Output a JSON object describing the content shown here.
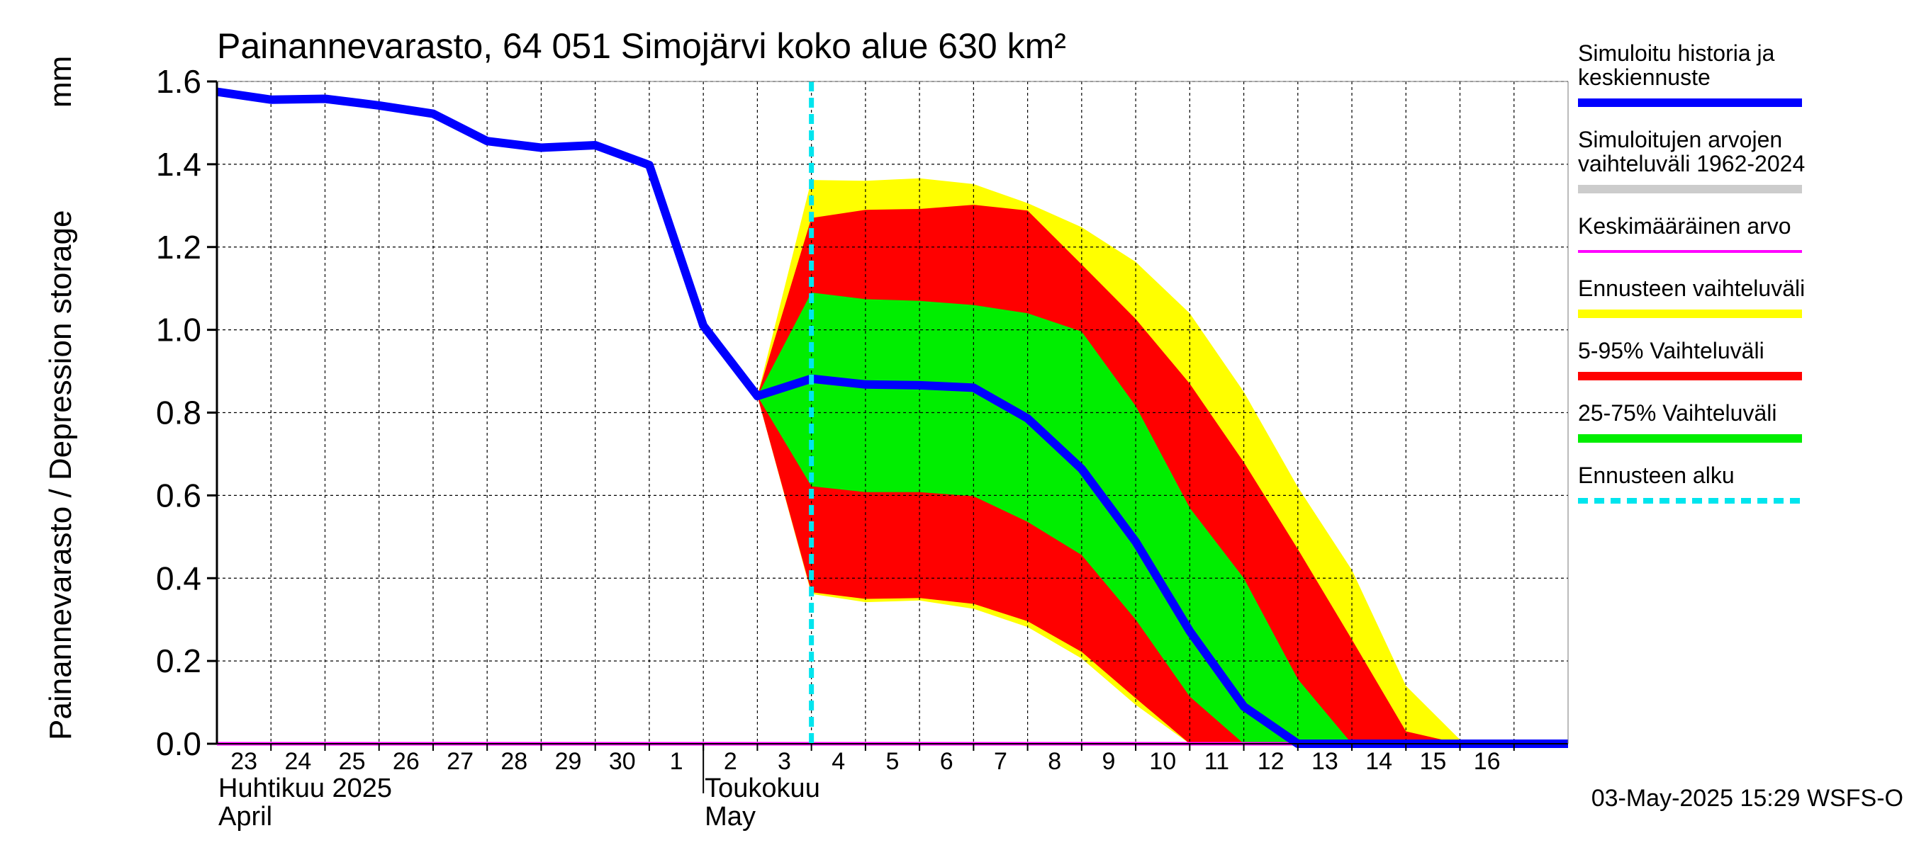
{
  "chart_data": {
    "type": "area",
    "title": "Painannevarasto, 64 051 Simojärvi koko alue 630 km²",
    "ylabel": "Painannevarasto / Depression storage",
    "yunit": "mm",
    "ylim": [
      0,
      1.6
    ],
    "yticks": [
      "0.0",
      "0.2",
      "0.4",
      "0.6",
      "0.8",
      "1.0",
      "1.2",
      "1.4",
      "1.6"
    ],
    "grid": true,
    "x_start_date": "2025-04-22",
    "x_end_date": "2025-05-17",
    "x_ticks": [
      {
        "date": "2025-04-23",
        "label": "23"
      },
      {
        "date": "2025-04-24",
        "label": "24"
      },
      {
        "date": "2025-04-25",
        "label": "25"
      },
      {
        "date": "2025-04-26",
        "label": "26"
      },
      {
        "date": "2025-04-27",
        "label": "27"
      },
      {
        "date": "2025-04-28",
        "label": "28"
      },
      {
        "date": "2025-04-29",
        "label": "29"
      },
      {
        "date": "2025-04-30",
        "label": "30"
      },
      {
        "date": "2025-05-01",
        "label": "1"
      },
      {
        "date": "2025-05-02",
        "label": "2"
      },
      {
        "date": "2025-05-03",
        "label": "3"
      },
      {
        "date": "2025-05-04",
        "label": "4"
      },
      {
        "date": "2025-05-05",
        "label": "5"
      },
      {
        "date": "2025-05-06",
        "label": "6"
      },
      {
        "date": "2025-05-07",
        "label": "7"
      },
      {
        "date": "2025-05-08",
        "label": "8"
      },
      {
        "date": "2025-05-09",
        "label": "9"
      },
      {
        "date": "2025-05-10",
        "label": "10"
      },
      {
        "date": "2025-05-11",
        "label": "11"
      },
      {
        "date": "2025-05-12",
        "label": "12"
      },
      {
        "date": "2025-05-13",
        "label": "13"
      },
      {
        "date": "2025-05-14",
        "label": "14"
      },
      {
        "date": "2025-05-15",
        "label": "15"
      },
      {
        "date": "2025-05-16",
        "label": "16"
      }
    ],
    "month_labels": [
      {
        "date": "2025-04-22",
        "fi": "Huhtikuu  2025",
        "en": "April"
      },
      {
        "date": "2025-05-01",
        "fi": "Toukokuu",
        "en": "May"
      }
    ],
    "month_divider_date": "2025-05-01",
    "forecast_start": "2025-05-03",
    "simulated": [
      {
        "x": "2025-04-22",
        "y": 1.575
      },
      {
        "x": "2025-04-23",
        "y": 1.556
      },
      {
        "x": "2025-04-24",
        "y": 1.558
      },
      {
        "x": "2025-04-25",
        "y": 1.542
      },
      {
        "x": "2025-04-26",
        "y": 1.522
      },
      {
        "x": "2025-04-27",
        "y": 1.456
      },
      {
        "x": "2025-04-28",
        "y": 1.44
      },
      {
        "x": "2025-04-29",
        "y": 1.446
      },
      {
        "x": "2025-04-30",
        "y": 1.398
      },
      {
        "x": "2025-05-01",
        "y": 1.01
      },
      {
        "x": "2025-05-02",
        "y": 0.84
      },
      {
        "x": "2025-05-03",
        "y": 0.882
      },
      {
        "x": "2025-05-04",
        "y": 0.868
      },
      {
        "x": "2025-05-05",
        "y": 0.866
      },
      {
        "x": "2025-05-06",
        "y": 0.86
      },
      {
        "x": "2025-05-07",
        "y": 0.786
      },
      {
        "x": "2025-05-08",
        "y": 0.664
      },
      {
        "x": "2025-05-09",
        "y": 0.488
      },
      {
        "x": "2025-05-10",
        "y": 0.272
      },
      {
        "x": "2025-05-11",
        "y": 0.09
      },
      {
        "x": "2025-05-12",
        "y": 0.0
      },
      {
        "x": "2025-05-13",
        "y": 0.0
      },
      {
        "x": "2025-05-14",
        "y": 0.0
      },
      {
        "x": "2025-05-15",
        "y": 0.0
      },
      {
        "x": "2025-05-16",
        "y": 0.0
      },
      {
        "x": "2025-05-17",
        "y": 0.0
      }
    ],
    "forecast_dates": [
      "2025-05-02",
      "2025-05-03",
      "2025-05-04",
      "2025-05-05",
      "2025-05-06",
      "2025-05-07",
      "2025-05-08",
      "2025-05-09",
      "2025-05-10",
      "2025-05-11",
      "2025-05-12",
      "2025-05-13",
      "2025-05-14",
      "2025-05-15",
      "2025-05-16",
      "2025-05-17"
    ],
    "bands": [
      {
        "name": "Ennusteen vaihteluväli",
        "color": "#ffff00",
        "low": [
          0.84,
          0.362,
          0.342,
          0.346,
          0.326,
          0.282,
          0.206,
          0.094,
          0.0,
          0.0,
          0.0,
          0.0,
          0.0,
          0.0,
          0.0,
          0.0
        ],
        "high": [
          0.84,
          1.362,
          1.36,
          1.366,
          1.352,
          1.306,
          1.248,
          1.164,
          1.04,
          0.85,
          0.62,
          0.42,
          0.14,
          0.01,
          0.0,
          0.0
        ]
      },
      {
        "name": "5-95% Vaihteluväli",
        "color": "#ff0000",
        "low": [
          0.84,
          0.366,
          0.35,
          0.352,
          0.338,
          0.296,
          0.222,
          0.11,
          0.0,
          0.0,
          0.0,
          0.0,
          0.0,
          0.0,
          0.0,
          0.0
        ],
        "high": [
          0.84,
          1.27,
          1.29,
          1.292,
          1.302,
          1.288,
          1.158,
          1.026,
          0.87,
          0.68,
          0.47,
          0.252,
          0.03,
          0.0,
          0.0,
          0.0
        ]
      },
      {
        "name": "25-75% Vaihteluväli",
        "color": "#00ee00",
        "low": [
          0.84,
          0.622,
          0.608,
          0.608,
          0.598,
          0.536,
          0.456,
          0.3,
          0.114,
          0.0,
          0.0,
          0.0,
          0.0,
          0.0,
          0.0,
          0.0
        ],
        "high": [
          0.84,
          1.09,
          1.074,
          1.07,
          1.06,
          1.04,
          0.996,
          0.816,
          0.57,
          0.4,
          0.156,
          0.0,
          0.0,
          0.0,
          0.0,
          0.0
        ]
      }
    ],
    "mean_value": 0.0,
    "legend_position": "right",
    "legend": [
      {
        "lines": [
          "Simuloitu historia ja",
          "keskiennuste"
        ],
        "color": "#0000ff",
        "style": "solid"
      },
      {
        "lines": [
          "Simuloitujen arvojen",
          "vaihteluväli 1962-2024"
        ],
        "color": "#cccccc",
        "style": "solid"
      },
      {
        "lines": [
          "Keskimääräinen arvo"
        ],
        "color": "#ff00ff",
        "style": "thin"
      },
      {
        "lines": [
          "Ennusteen vaihteluväli"
        ],
        "color": "#ffff00",
        "style": "solid"
      },
      {
        "lines": [
          "5-95% Vaihteluväli"
        ],
        "color": "#ff0000",
        "style": "solid"
      },
      {
        "lines": [
          "25-75% Vaihteluväli"
        ],
        "color": "#00ee00",
        "style": "solid"
      },
      {
        "lines": [
          "Ennusteen alku"
        ],
        "color": "#00e5ee",
        "style": "dashed"
      }
    ],
    "footer": "03-May-2025 15:29 WSFS-O"
  }
}
